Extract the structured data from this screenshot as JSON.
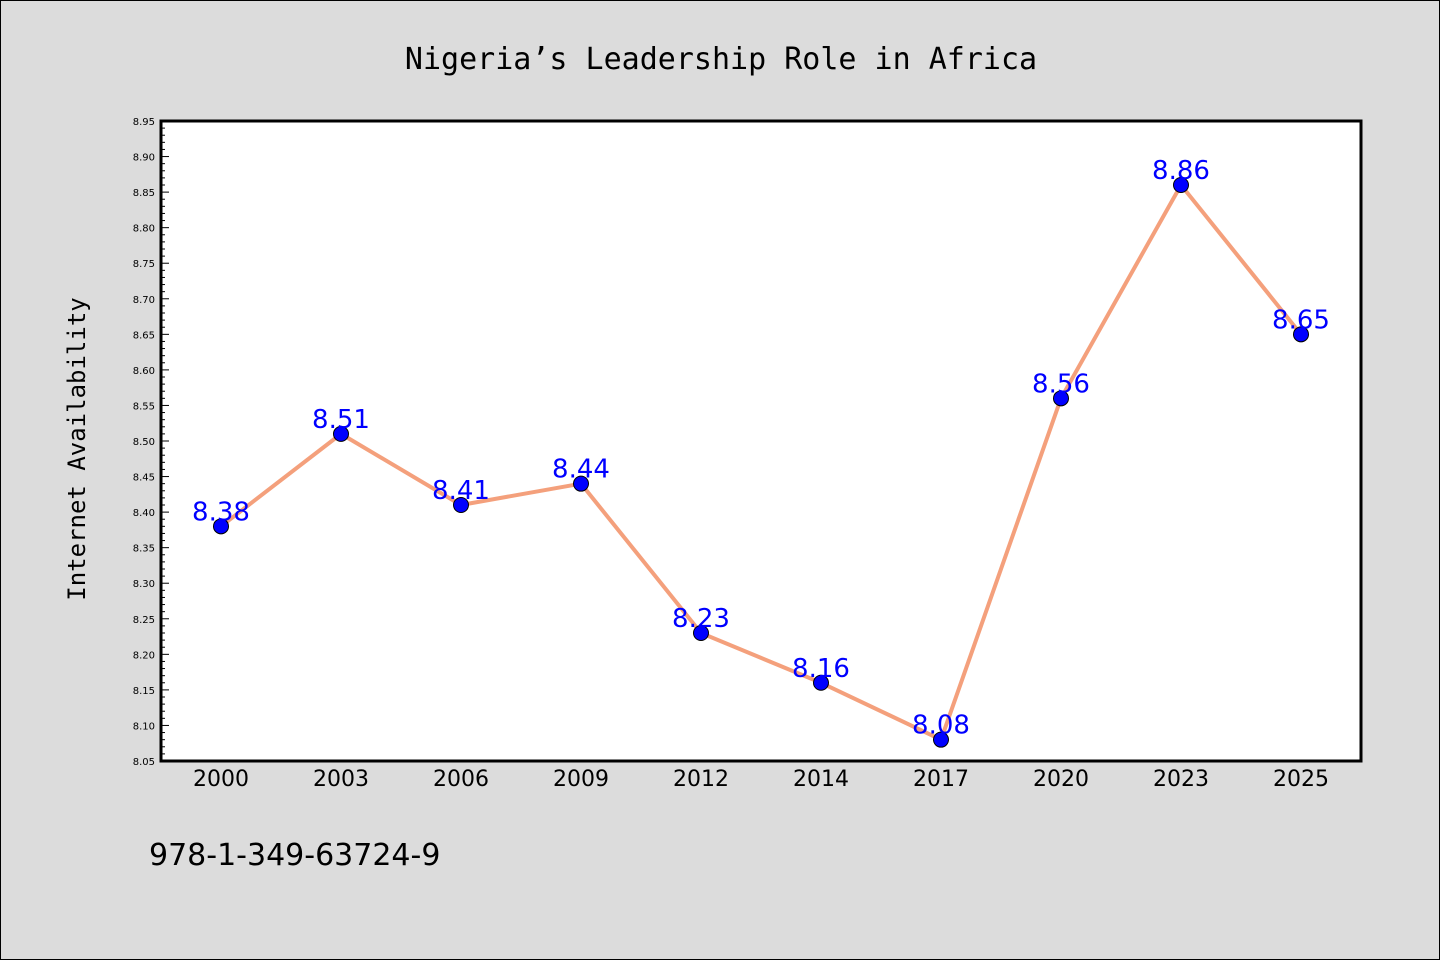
{
  "chart_data": {
    "type": "line",
    "title": "Nigeria’s Leadership Role in Africa",
    "xlabel": "",
    "ylabel": "Internet Availability",
    "x": [
      "2000",
      "2003",
      "2006",
      "2009",
      "2012",
      "2014",
      "2017",
      "2020",
      "2023",
      "2025"
    ],
    "series": [
      {
        "values": [
          8.38,
          8.51,
          8.41,
          8.44,
          8.23,
          8.16,
          8.08,
          8.56,
          8.86,
          8.65
        ],
        "labels": [
          "8.38",
          "8.51",
          "8.41",
          "8.44",
          "8.23",
          "8.16",
          "8.08",
          "8.56",
          "8.86",
          "8.65"
        ]
      }
    ],
    "ylim": [
      8.05,
      8.95
    ],
    "yticks": [
      "8.05",
      "8.10",
      "8.15",
      "8.20",
      "8.25",
      "8.30",
      "8.35",
      "8.40",
      "8.45",
      "8.50",
      "8.55",
      "8.60",
      "8.65",
      "8.70",
      "8.75",
      "8.80",
      "8.85",
      "8.90",
      "8.95"
    ],
    "grid": false,
    "colors": {
      "line": "#f4a07c",
      "marker": "#0000ff",
      "data_label": "#0000ff",
      "background": "#dcdcdc",
      "plot_area": "#ffffff"
    }
  },
  "footer": {
    "text": "978-1-349-63724-9"
  }
}
